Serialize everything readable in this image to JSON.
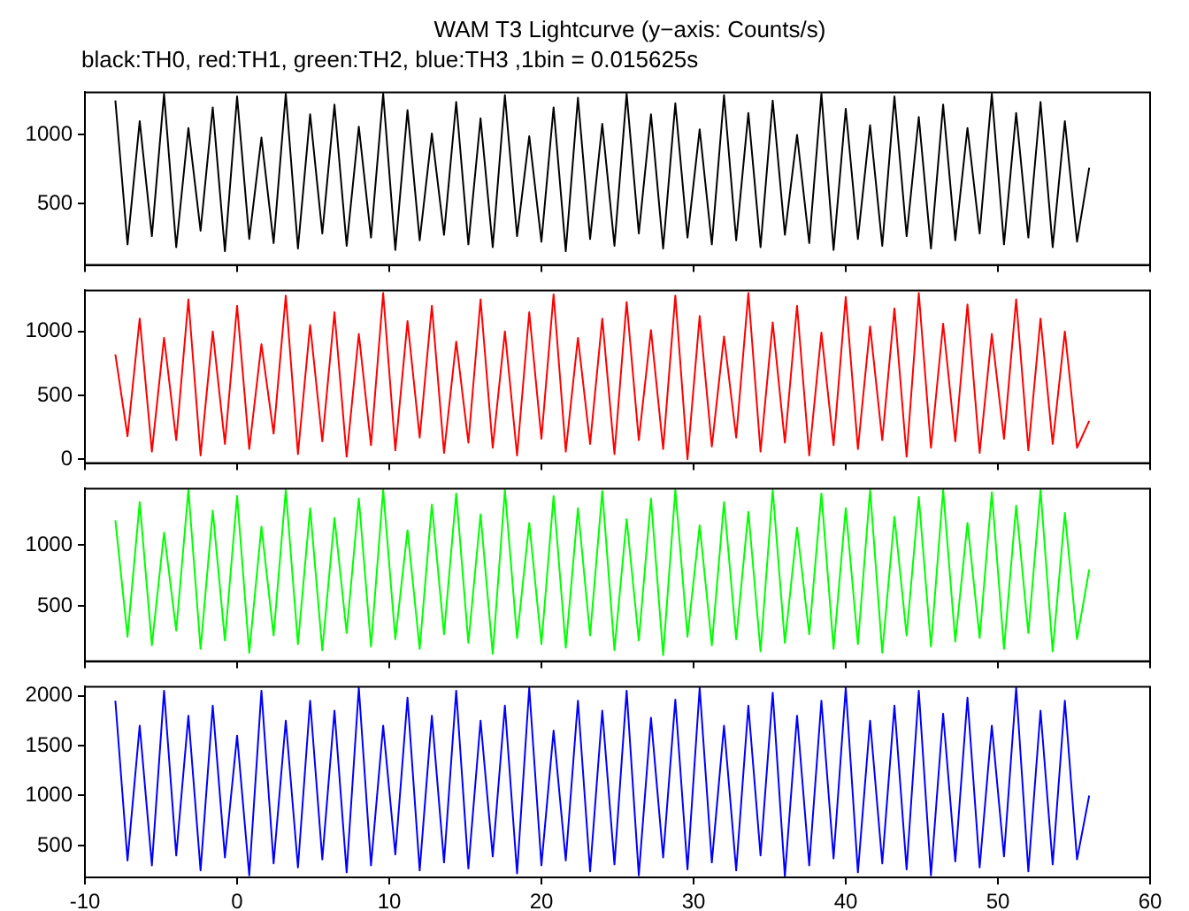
{
  "chart_data": [
    {
      "type": "line",
      "title": "WAM T3 Lightcurve (y−axis: Counts/s)",
      "subtitle": "black:TH0, red:TH1, green:TH2, blue:TH3 ,1bin = 0.015625s",
      "x": [
        -8,
        -7.2,
        -6.4,
        -5.6,
        -4.8,
        -4,
        -3.2,
        -2.4,
        -1.6,
        -0.8,
        0,
        0.8,
        1.6,
        2.4,
        3.2,
        4,
        4.8,
        5.6,
        6.4,
        7.2,
        8,
        8.8,
        9.6,
        10.4,
        11.2,
        12,
        12.8,
        13.6,
        14.4,
        15.2,
        16,
        16.8,
        17.6,
        18.4,
        19.2,
        20,
        20.8,
        21.6,
        22.4,
        23.2,
        24,
        24.8,
        25.6,
        26.4,
        27.2,
        28,
        28.8,
        29.6,
        30.4,
        31.2,
        32,
        32.8,
        33.6,
        34.4,
        35.2,
        36,
        36.8,
        37.6,
        38.4,
        39.2,
        40,
        40.8,
        41.6,
        42.4,
        43.2,
        44,
        44.8,
        45.6,
        46.4,
        47.2,
        48,
        48.8,
        49.6,
        50.4,
        51.2,
        52,
        52.8,
        53.6,
        54.4,
        55.2,
        56
      ],
      "series": [
        {
          "color": "#000000",
          "values": [
            1250,
            200,
            1100,
            260,
            1300,
            180,
            1050,
            300,
            1200,
            150,
            1280,
            240,
            980,
            210,
            1300,
            170,
            1150,
            280,
            1220,
            190,
            1060,
            250,
            1300,
            160,
            1180,
            230,
            1010,
            270,
            1240,
            200,
            1120,
            180,
            1290,
            260,
            990,
            220,
            1200,
            150,
            1270,
            240,
            1080,
            190,
            1300,
            280,
            1150,
            170,
            1230,
            250,
            1040,
            200,
            1290,
            230,
            1160,
            180,
            1250,
            270,
            1000,
            210,
            1300,
            160,
            1190,
            240,
            1070,
            190,
            1280,
            260,
            1130,
            170,
            1220,
            230,
            1050,
            280,
            1300,
            200,
            1160,
            250,
            1240,
            180,
            1100,
            220,
            760
          ]
        }
      ],
      "xlim": [
        -10,
        60
      ],
      "xticks": [
        -10,
        0,
        10,
        20,
        30,
        40,
        50,
        60
      ],
      "ylim": [
        50,
        1310
      ],
      "yticks": [
        500,
        1000
      ],
      "tick_labels": "y"
    },
    {
      "type": "line",
      "x": [
        -8,
        -7.2,
        -6.4,
        -5.6,
        -4.8,
        -4,
        -3.2,
        -2.4,
        -1.6,
        -0.8,
        0,
        0.8,
        1.6,
        2.4,
        3.2,
        4,
        4.8,
        5.6,
        6.4,
        7.2,
        8,
        8.8,
        9.6,
        10.4,
        11.2,
        12,
        12.8,
        13.6,
        14.4,
        15.2,
        16,
        16.8,
        17.6,
        18.4,
        19.2,
        20,
        20.8,
        21.6,
        22.4,
        23.2,
        24,
        24.8,
        25.6,
        26.4,
        27.2,
        28,
        28.8,
        29.6,
        30.4,
        31.2,
        32,
        32.8,
        33.6,
        34.4,
        35.2,
        36,
        36.8,
        37.6,
        38.4,
        39.2,
        40,
        40.8,
        41.6,
        42.4,
        43.2,
        44,
        44.8,
        45.6,
        46.4,
        47.2,
        48,
        48.8,
        49.6,
        50.4,
        51.2,
        52,
        52.8,
        53.6,
        54.4,
        55.2,
        56
      ],
      "series": [
        {
          "color": "#ff0000",
          "values": [
            820,
            180,
            1100,
            60,
            950,
            150,
            1250,
            30,
            1000,
            120,
            1200,
            80,
            900,
            200,
            1280,
            40,
            1050,
            140,
            1150,
            20,
            980,
            110,
            1300,
            70,
            1080,
            170,
            1200,
            50,
            920,
            130,
            1250,
            90,
            1000,
            30,
            1150,
            160,
            1290,
            60,
            950,
            120,
            1100,
            40,
            1230,
            150,
            1010,
            80,
            1280,
            0,
            1120,
            100,
            960,
            170,
            1300,
            60,
            1070,
            130,
            1200,
            30,
            990,
            110,
            1270,
            80,
            1040,
            150,
            1180,
            20,
            1300,
            90,
            1060,
            140,
            1210,
            50,
            980,
            160,
            1250,
            70,
            1100,
            120,
            1000,
            90,
            300
          ]
        }
      ],
      "xlim": [
        -10,
        60
      ],
      "xticks": [
        -10,
        0,
        10,
        20,
        30,
        40,
        50,
        60
      ],
      "ylim": [
        -30,
        1320
      ],
      "yticks": [
        0,
        500,
        1000
      ],
      "tick_labels": "y"
    },
    {
      "type": "line",
      "x": [
        -8,
        -7.2,
        -6.4,
        -5.6,
        -4.8,
        -4,
        -3.2,
        -2.4,
        -1.6,
        -0.8,
        0,
        0.8,
        1.6,
        2.4,
        3.2,
        4,
        4.8,
        5.6,
        6.4,
        7.2,
        8,
        8.8,
        9.6,
        10.4,
        11.2,
        12,
        12.8,
        13.6,
        14.4,
        15.2,
        16,
        16.8,
        17.6,
        18.4,
        19.2,
        20,
        20.8,
        21.6,
        22.4,
        23.2,
        24,
        24.8,
        25.6,
        26.4,
        27.2,
        28,
        28.8,
        29.6,
        30.4,
        31.2,
        32,
        32.8,
        33.6,
        34.4,
        35.2,
        36,
        36.8,
        37.6,
        38.4,
        39.2,
        40,
        40.8,
        41.6,
        42.4,
        43.2,
        44,
        44.8,
        45.6,
        46.4,
        47.2,
        48,
        48.8,
        49.6,
        50.4,
        51.2,
        52,
        52.8,
        53.6,
        54.4,
        55.2,
        56
      ],
      "series": [
        {
          "color": "#00ff00",
          "values": [
            1200,
            250,
            1350,
            180,
            1100,
            300,
            1450,
            150,
            1280,
            220,
            1400,
            120,
            1150,
            260,
            1450,
            190,
            1300,
            140,
            1220,
            280,
            1380,
            170,
            1450,
            230,
            1120,
            150,
            1330,
            270,
            1420,
            200,
            1250,
            110,
            1450,
            240,
            1180,
            190,
            1400,
            160,
            1300,
            260,
            1440,
            140,
            1210,
            220,
            1380,
            100,
            1450,
            250,
            1160,
            180,
            1350,
            230,
            1270,
            130,
            1450,
            200,
            1140,
            270,
            1420,
            150,
            1300,
            190,
            1450,
            120,
            1230,
            260,
            1390,
            170,
            1450,
            210,
            1180,
            240,
            1430,
            150,
            1320,
            280,
            1450,
            130,
            1260,
            230,
            800
          ]
        }
      ],
      "xlim": [
        -10,
        60
      ],
      "xticks": [
        -10,
        0,
        10,
        20,
        30,
        40,
        50,
        60
      ],
      "ylim": [
        50,
        1460
      ],
      "yticks": [
        500,
        1000
      ],
      "tick_labels": "y"
    },
    {
      "type": "line",
      "x": [
        -8,
        -7.2,
        -6.4,
        -5.6,
        -4.8,
        -4,
        -3.2,
        -2.4,
        -1.6,
        -0.8,
        0,
        0.8,
        1.6,
        2.4,
        3.2,
        4,
        4.8,
        5.6,
        6.4,
        7.2,
        8,
        8.8,
        9.6,
        10.4,
        11.2,
        12,
        12.8,
        13.6,
        14.4,
        15.2,
        16,
        16.8,
        17.6,
        18.4,
        19.2,
        20,
        20.8,
        21.6,
        22.4,
        23.2,
        24,
        24.8,
        25.6,
        26.4,
        27.2,
        28,
        28.8,
        29.6,
        30.4,
        31.2,
        32,
        32.8,
        33.6,
        34.4,
        35.2,
        36,
        36.8,
        37.6,
        38.4,
        39.2,
        40,
        40.8,
        41.6,
        42.4,
        43.2,
        44,
        44.8,
        45.6,
        46.4,
        47.2,
        48,
        48.8,
        49.6,
        50.4,
        51.2,
        52,
        52.8,
        53.6,
        54.4,
        55.2,
        56
      ],
      "series": [
        {
          "color": "#0000ff",
          "values": [
            1950,
            350,
            1700,
            300,
            2050,
            400,
            1800,
            250,
            1900,
            380,
            1600,
            200,
            2050,
            320,
            1750,
            280,
            1950,
            360,
            1850,
            230,
            2080,
            300,
            1700,
            410,
            1980,
            250,
            1800,
            330,
            2050,
            270,
            1750,
            390,
            1900,
            220,
            2080,
            300,
            1650,
            350,
            1950,
            240,
            1850,
            310,
            2050,
            200,
            1780,
            380,
            1960,
            260,
            2080,
            330,
            1700,
            250,
            1900,
            400,
            2030,
            190,
            1800,
            300,
            1950,
            370,
            2080,
            230,
            1750,
            320,
            1900,
            260,
            2050,
            200,
            1820,
            340,
            1980,
            280,
            1700,
            390,
            2080,
            240,
            1850,
            310,
            1950,
            360,
            1000
          ]
        }
      ],
      "xlim": [
        -10,
        60
      ],
      "xticks": [
        -10,
        0,
        10,
        20,
        30,
        40,
        50,
        60
      ],
      "ylim": [
        180,
        2090
      ],
      "yticks": [
        500,
        1000,
        1500,
        2000
      ]
    }
  ]
}
